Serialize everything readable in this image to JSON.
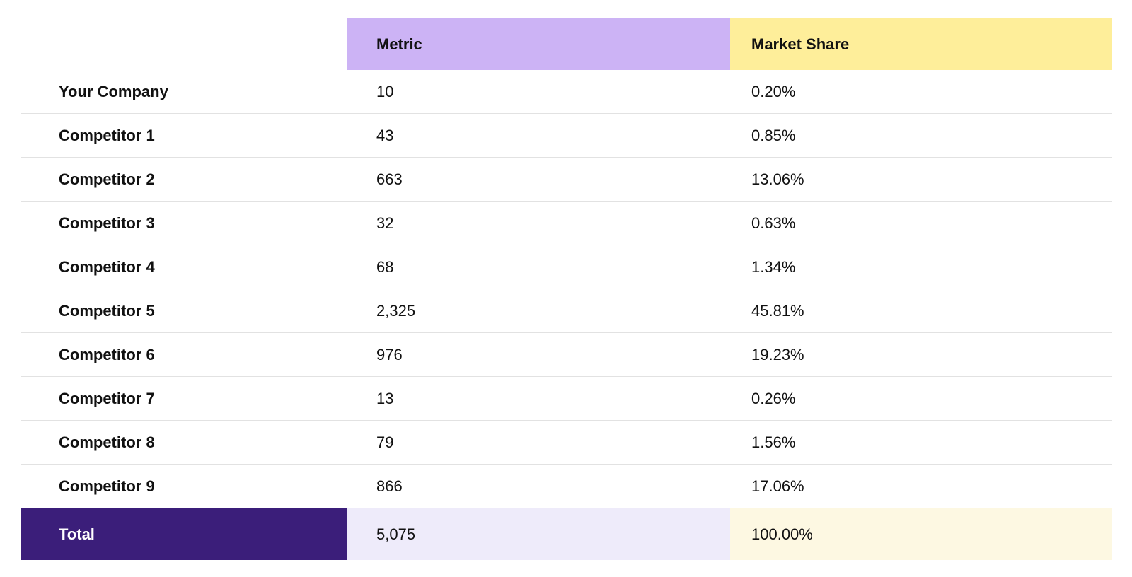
{
  "colors": {
    "header_metric_bg": "#ccb3f5",
    "header_market_share_bg": "#feee9a",
    "total_label_bg": "#3b1e7a",
    "total_metric_bg": "#eeebfa",
    "total_market_share_bg": "#fdf8e2",
    "divider": "#e2e2e2",
    "text": "#111111",
    "total_label_text": "#ffffff"
  },
  "table": {
    "header": {
      "company": "",
      "metric": "Metric",
      "market_share": "Market Share"
    },
    "rows": [
      {
        "company": "Your Company",
        "metric": "10",
        "market_share": "0.20%"
      },
      {
        "company": "Competitor 1",
        "metric": "43",
        "market_share": "0.85%"
      },
      {
        "company": "Competitor 2",
        "metric": "663",
        "market_share": "13.06%"
      },
      {
        "company": "Competitor 3",
        "metric": "32",
        "market_share": "0.63%"
      },
      {
        "company": "Competitor 4",
        "metric": "68",
        "market_share": "1.34%"
      },
      {
        "company": "Competitor 5",
        "metric": "2,325",
        "market_share": "45.81%"
      },
      {
        "company": "Competitor 6",
        "metric": "976",
        "market_share": "19.23%"
      },
      {
        "company": "Competitor 7",
        "metric": "13",
        "market_share": "0.26%"
      },
      {
        "company": "Competitor 8",
        "metric": "79",
        "market_share": "1.56%"
      },
      {
        "company": "Competitor 9",
        "metric": "866",
        "market_share": "17.06%"
      }
    ],
    "total": {
      "label": "Total",
      "metric": "5,075",
      "market_share": "100.00%"
    }
  },
  "chart_data": {
    "type": "table",
    "columns": [
      "",
      "Metric",
      "Market Share"
    ],
    "rows": [
      [
        "Your Company",
        10,
        "0.20%"
      ],
      [
        "Competitor 1",
        43,
        "0.85%"
      ],
      [
        "Competitor 2",
        663,
        "13.06%"
      ],
      [
        "Competitor 3",
        32,
        "0.63%"
      ],
      [
        "Competitor 4",
        68,
        "1.34%"
      ],
      [
        "Competitor 5",
        2325,
        "45.81%"
      ],
      [
        "Competitor 6",
        976,
        "19.23%"
      ],
      [
        "Competitor 7",
        13,
        "0.26%"
      ],
      [
        "Competitor 8",
        79,
        "1.56%"
      ],
      [
        "Competitor 9",
        866,
        "17.06%"
      ]
    ],
    "total_row": [
      "Total",
      5075,
      "100.00%"
    ],
    "title": "",
    "layout_hints": {
      "metric_header_highlight": "lavender",
      "market_share_header_highlight": "yellow",
      "total_row_highlight": "dark-purple label with tinted value cells",
      "gridlines": "horizontal row dividers only"
    }
  }
}
